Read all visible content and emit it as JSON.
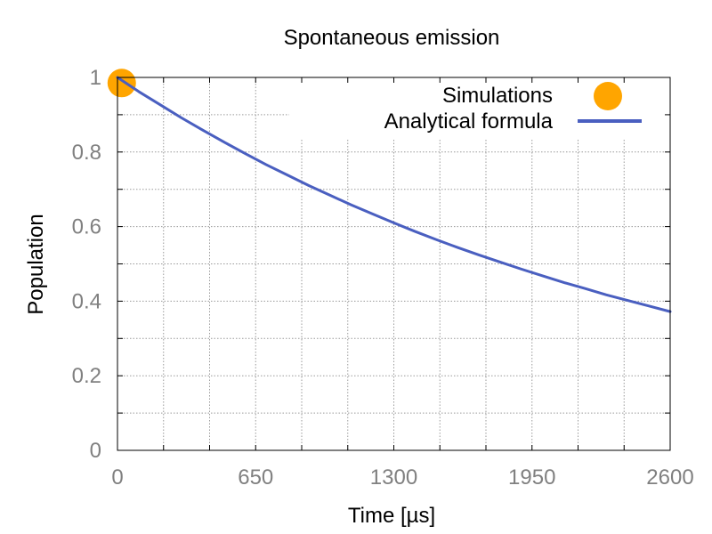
{
  "chart_data": {
    "type": "line",
    "title": "Spontaneous emission",
    "xlabel": "Time [µs]",
    "ylabel": "Population",
    "xlim": [
      0,
      2600
    ],
    "ylim": [
      0,
      1
    ],
    "x_ticks": [
      0,
      650,
      1300,
      1950,
      2600
    ],
    "x_tick_labels": [
      "0",
      "650",
      "1300",
      "1950",
      "2600"
    ],
    "x_minor_step": 216.6667,
    "y_ticks": [
      0,
      0.2,
      0.4,
      0.6,
      0.8,
      1
    ],
    "y_tick_labels": [
      "0",
      "0.2",
      "0.4",
      "0.6",
      "0.8",
      "1"
    ],
    "y_minor_step": 0.1,
    "grid": true,
    "legend_position": "top-right",
    "series": [
      {
        "name": "Simulations",
        "kind": "scatter",
        "color": "#ffa500",
        "x": [
          20
        ],
        "y": [
          0.985
        ]
      },
      {
        "name": "Analytical formula",
        "kind": "line",
        "color": "#4a5fc0",
        "x": [
          0,
          100,
          200,
          300,
          400,
          500,
          600,
          700,
          800,
          900,
          1000,
          1100,
          1200,
          1300,
          1400,
          1500,
          1600,
          1700,
          1800,
          1900,
          2000,
          2100,
          2200,
          2300,
          2400,
          2500,
          2600
        ],
        "y": [
          1.0,
          0.962,
          0.927,
          0.892,
          0.859,
          0.827,
          0.796,
          0.766,
          0.738,
          0.71,
          0.684,
          0.658,
          0.634,
          0.61,
          0.587,
          0.565,
          0.544,
          0.524,
          0.505,
          0.486,
          0.468,
          0.45,
          0.434,
          0.417,
          0.402,
          0.387,
          0.372
        ]
      }
    ]
  }
}
